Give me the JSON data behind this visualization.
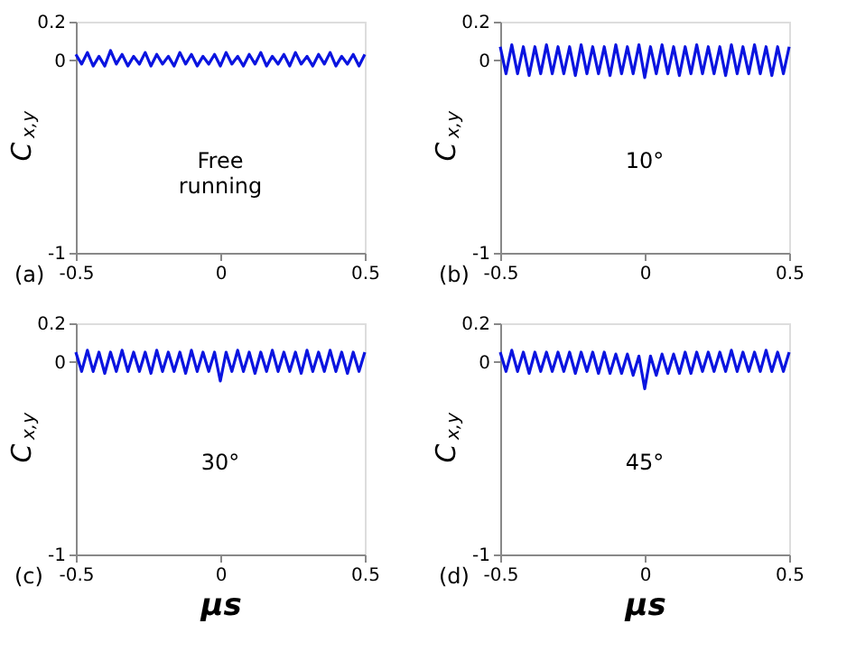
{
  "chart_data": [
    {
      "type": "line",
      "ylabel": "C$_{x,y}$",
      "annotations": [
        "Free\nrunning",
        "(a)"
      ],
      "xlim": [
        -0.5,
        0.5
      ],
      "xticks": [
        -0.5,
        0,
        0.5
      ],
      "ylim": [
        -1,
        0.2
      ],
      "yticks": [
        -1,
        0,
        0.2
      ],
      "grid": false,
      "x": [
        -0.5,
        -0.48,
        -0.46,
        -0.44,
        -0.42,
        -0.4,
        -0.38,
        -0.36,
        -0.34,
        -0.32,
        -0.3,
        -0.28,
        -0.26,
        -0.24,
        -0.22,
        -0.2,
        -0.18,
        -0.16,
        -0.14,
        -0.12,
        -0.1,
        -0.08,
        -0.06,
        -0.04,
        -0.02,
        0,
        0.02,
        0.04,
        0.06,
        0.08,
        0.1,
        0.12,
        0.14,
        0.16,
        0.18,
        0.2,
        0.22,
        0.24,
        0.26,
        0.28,
        0.3,
        0.32,
        0.34,
        0.36,
        0.38,
        0.4,
        0.42,
        0.44,
        0.46,
        0.48,
        0.5
      ],
      "series": [
        {
          "color": "#0a14e0",
          "values": [
            0.03,
            -0.02,
            0.04,
            -0.03,
            0.02,
            -0.03,
            0.05,
            -0.02,
            0.03,
            -0.03,
            0.02,
            -0.02,
            0.04,
            -0.03,
            0.03,
            -0.02,
            0.02,
            -0.03,
            0.04,
            -0.02,
            0.03,
            -0.03,
            0.02,
            -0.02,
            0.03,
            -0.03,
            0.04,
            -0.02,
            0.02,
            -0.03,
            0.03,
            -0.02,
            0.04,
            -0.03,
            0.02,
            -0.02,
            0.03,
            -0.03,
            0.04,
            -0.02,
            0.02,
            -0.03,
            0.03,
            -0.02,
            0.04,
            -0.03,
            0.02,
            -0.02,
            0.03,
            -0.03,
            0.03
          ]
        }
      ]
    },
    {
      "type": "line",
      "ylabel": "C$_{x,y}$",
      "annotations": [
        "10°",
        "(b)"
      ],
      "xlim": [
        -0.5,
        0.5
      ],
      "xticks": [
        -0.5,
        0,
        0.5
      ],
      "ylim": [
        -1,
        0.2
      ],
      "yticks": [
        -1,
        0,
        0.2
      ],
      "grid": false,
      "x": [
        -0.5,
        -0.48,
        -0.46,
        -0.44,
        -0.42,
        -0.4,
        -0.38,
        -0.36,
        -0.34,
        -0.32,
        -0.3,
        -0.28,
        -0.26,
        -0.24,
        -0.22,
        -0.2,
        -0.18,
        -0.16,
        -0.14,
        -0.12,
        -0.1,
        -0.08,
        -0.06,
        -0.04,
        -0.02,
        0,
        0.02,
        0.04,
        0.06,
        0.08,
        0.1,
        0.12,
        0.14,
        0.16,
        0.18,
        0.2,
        0.22,
        0.24,
        0.26,
        0.28,
        0.3,
        0.32,
        0.34,
        0.36,
        0.38,
        0.4,
        0.42,
        0.44,
        0.46,
        0.48,
        0.5
      ],
      "series": [
        {
          "color": "#0a14e0",
          "values": [
            0.07,
            -0.07,
            0.08,
            -0.07,
            0.07,
            -0.08,
            0.07,
            -0.07,
            0.08,
            -0.07,
            0.07,
            -0.07,
            0.07,
            -0.08,
            0.08,
            -0.07,
            0.07,
            -0.07,
            0.07,
            -0.08,
            0.08,
            -0.07,
            0.07,
            -0.07,
            0.08,
            -0.09,
            0.07,
            -0.07,
            0.08,
            -0.07,
            0.07,
            -0.08,
            0.07,
            -0.07,
            0.08,
            -0.07,
            0.07,
            -0.07,
            0.07,
            -0.08,
            0.08,
            -0.07,
            0.07,
            -0.07,
            0.08,
            -0.07,
            0.07,
            -0.08,
            0.07,
            -0.07,
            0.07
          ]
        }
      ]
    },
    {
      "type": "line",
      "ylabel": "C$_{x,y}$",
      "xlabel": "μs",
      "annotations": [
        "30°",
        "(c)"
      ],
      "xlim": [
        -0.5,
        0.5
      ],
      "xticks": [
        -0.5,
        0,
        0.5
      ],
      "ylim": [
        -1,
        0.2
      ],
      "yticks": [
        -1,
        0,
        0.2
      ],
      "grid": false,
      "x": [
        -0.5,
        -0.48,
        -0.46,
        -0.44,
        -0.42,
        -0.4,
        -0.38,
        -0.36,
        -0.34,
        -0.32,
        -0.3,
        -0.28,
        -0.26,
        -0.24,
        -0.22,
        -0.2,
        -0.18,
        -0.16,
        -0.14,
        -0.12,
        -0.1,
        -0.08,
        -0.06,
        -0.04,
        -0.02,
        0,
        0.02,
        0.04,
        0.06,
        0.08,
        0.1,
        0.12,
        0.14,
        0.16,
        0.18,
        0.2,
        0.22,
        0.24,
        0.26,
        0.28,
        0.3,
        0.32,
        0.34,
        0.36,
        0.38,
        0.4,
        0.42,
        0.44,
        0.46,
        0.48,
        0.5
      ],
      "series": [
        {
          "color": "#0a14e0",
          "values": [
            0.05,
            -0.05,
            0.06,
            -0.05,
            0.05,
            -0.06,
            0.05,
            -0.05,
            0.06,
            -0.05,
            0.05,
            -0.05,
            0.05,
            -0.06,
            0.06,
            -0.05,
            0.05,
            -0.05,
            0.05,
            -0.06,
            0.06,
            -0.05,
            0.05,
            -0.05,
            0.05,
            -0.1,
            0.05,
            -0.05,
            0.06,
            -0.05,
            0.05,
            -0.06,
            0.05,
            -0.05,
            0.06,
            -0.05,
            0.05,
            -0.05,
            0.05,
            -0.06,
            0.06,
            -0.05,
            0.05,
            -0.05,
            0.06,
            -0.05,
            0.05,
            -0.06,
            0.05,
            -0.05,
            0.05
          ]
        }
      ]
    },
    {
      "type": "line",
      "ylabel": "C$_{x,y}$",
      "xlabel": "μs",
      "annotations": [
        "45°",
        "(d)"
      ],
      "xlim": [
        -0.5,
        0.5
      ],
      "xticks": [
        -0.5,
        0,
        0.5
      ],
      "ylim": [
        -1,
        0.2
      ],
      "yticks": [
        -1,
        0,
        0.2
      ],
      "grid": false,
      "x": [
        -0.5,
        -0.48,
        -0.46,
        -0.44,
        -0.42,
        -0.4,
        -0.38,
        -0.36,
        -0.34,
        -0.32,
        -0.3,
        -0.28,
        -0.26,
        -0.24,
        -0.22,
        -0.2,
        -0.18,
        -0.16,
        -0.14,
        -0.12,
        -0.1,
        -0.08,
        -0.06,
        -0.04,
        -0.02,
        0,
        0.02,
        0.04,
        0.06,
        0.08,
        0.1,
        0.12,
        0.14,
        0.16,
        0.18,
        0.2,
        0.22,
        0.24,
        0.26,
        0.28,
        0.3,
        0.32,
        0.34,
        0.36,
        0.38,
        0.4,
        0.42,
        0.44,
        0.46,
        0.48,
        0.5
      ],
      "series": [
        {
          "color": "#0a14e0",
          "values": [
            0.05,
            -0.05,
            0.06,
            -0.05,
            0.05,
            -0.06,
            0.05,
            -0.05,
            0.05,
            -0.05,
            0.05,
            -0.05,
            0.05,
            -0.06,
            0.05,
            -0.05,
            0.05,
            -0.06,
            0.05,
            -0.06,
            0.04,
            -0.06,
            0.04,
            -0.07,
            0.03,
            -0.14,
            0.03,
            -0.07,
            0.04,
            -0.06,
            0.04,
            -0.06,
            0.05,
            -0.06,
            0.05,
            -0.05,
            0.05,
            -0.05,
            0.05,
            -0.05,
            0.06,
            -0.05,
            0.05,
            -0.05,
            0.05,
            -0.05,
            0.06,
            -0.05,
            0.05,
            -0.05,
            0.05
          ]
        }
      ]
    }
  ]
}
